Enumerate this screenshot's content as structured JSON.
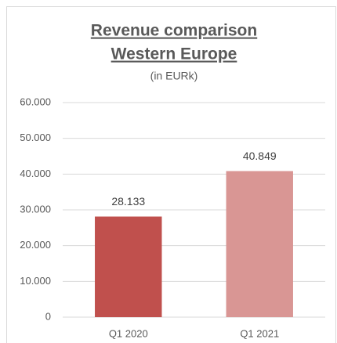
{
  "chart_data": {
    "type": "bar",
    "title": [
      "Revenue comparison",
      "Western Europe"
    ],
    "subtitle": "(in EURk)",
    "categories": [
      "Q1 2020",
      "Q1 2021"
    ],
    "values": [
      28133,
      40849
    ],
    "value_labels": [
      "28.133",
      "40.849"
    ],
    "colors": [
      "#c0504d",
      "#d99694"
    ],
    "ylim": [
      0,
      60000
    ],
    "yticks": [
      0,
      {
        "value": 10000,
        "label": "10.000"
      },
      {
        "value": 20000,
        "label": "20.000"
      },
      {
        "value": 30000,
        "label": "30.000"
      },
      {
        "value": 40000,
        "label": "40.000"
      },
      {
        "value": 50000,
        "label": "50.000"
      },
      {
        "value": 60000,
        "label": "60.000"
      }
    ],
    "grid": true
  }
}
